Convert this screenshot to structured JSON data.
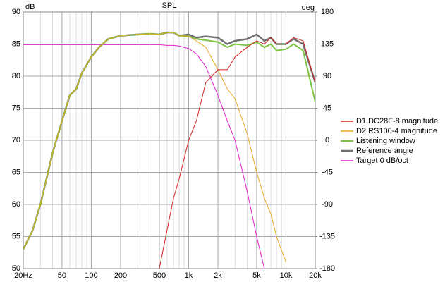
{
  "chart_data": {
    "type": "line",
    "title": "SPL",
    "y_label": "dB",
    "y2_label": "deg",
    "log_x": true,
    "grid": true,
    "minor_grid": true,
    "xlim": [
      20,
      20000
    ],
    "xticks": [
      {
        "value": 20,
        "label": "20Hz"
      },
      50,
      100,
      200,
      500,
      {
        "value": 1000,
        "label": "1k"
      },
      {
        "value": 2000,
        "label": "2k"
      },
      {
        "value": 5000,
        "label": "5k"
      },
      {
        "value": 10000,
        "label": "10k"
      },
      {
        "value": 20000,
        "label": "20k"
      }
    ],
    "ylim": [
      50,
      90
    ],
    "yticks": [
      50,
      55,
      60,
      65,
      70,
      75,
      80,
      85,
      90
    ],
    "y2lim": [
      -180,
      180
    ],
    "y2ticks": [
      -180,
      -135,
      -90,
      -45,
      0,
      45,
      90,
      135,
      180
    ],
    "x": [
      20,
      25,
      30,
      40,
      50,
      60,
      70,
      80,
      100,
      120,
      150,
      200,
      300,
      400,
      500,
      600,
      700,
      800,
      1000,
      1200,
      1500,
      2000,
      2500,
      3000,
      4000,
      5000,
      6000,
      7000,
      8000,
      10000,
      12000,
      15000,
      20000
    ],
    "series": [
      {
        "name": "D1 DC28F-8 magnitude",
        "color": "#d42424",
        "values": [
          null,
          null,
          null,
          null,
          null,
          null,
          null,
          null,
          null,
          null,
          null,
          null,
          null,
          null,
          50,
          56,
          61,
          64,
          70,
          73,
          79,
          81,
          81,
          83,
          84.5,
          85.5,
          85,
          86,
          85,
          85,
          86,
          85.5,
          79
        ]
      },
      {
        "name": "D2 RS100-4 magnitude",
        "color": "#e8a820",
        "values": [
          53,
          56,
          60,
          68,
          73,
          77,
          78,
          80.5,
          83,
          84.5,
          85.8,
          86.3,
          86.5,
          86.6,
          86.5,
          86.8,
          86.8,
          86.3,
          86.2,
          85.5,
          84.5,
          81,
          78,
          76.5,
          71,
          65,
          61,
          58.5,
          55,
          51,
          null,
          null,
          null
        ]
      },
      {
        "name": "Listening window",
        "color": "#7cc242",
        "values": [
          53,
          56,
          60,
          68,
          73,
          77,
          78,
          80.5,
          83,
          84.5,
          85.8,
          86.3,
          86.5,
          86.6,
          86.5,
          86.8,
          86.8,
          86.3,
          86.2,
          85.8,
          85.6,
          85.3,
          84.5,
          85,
          84.8,
          85.3,
          84.5,
          85,
          84,
          84.2,
          85,
          84,
          76
        ]
      },
      {
        "name": "Reference angle",
        "color": "#707070",
        "values": [
          53,
          56,
          60,
          68,
          73,
          77,
          78,
          80.5,
          83,
          84.5,
          85.8,
          86.3,
          86.5,
          86.6,
          86.5,
          86.8,
          86.8,
          86.3,
          86.5,
          86,
          86.2,
          86,
          85,
          85.5,
          85.8,
          86.5,
          85.5,
          86,
          85,
          85,
          85.8,
          85,
          79
        ]
      },
      {
        "name": "Target 0 dB/oct",
        "color": "#e020d0",
        "values": [
          84.9,
          84.9,
          84.9,
          84.9,
          84.9,
          84.9,
          84.9,
          84.9,
          84.9,
          84.9,
          84.9,
          84.9,
          84.9,
          84.9,
          84.9,
          84.8,
          84.8,
          84.7,
          84.3,
          83.5,
          81.5,
          77,
          73,
          70,
          62,
          55,
          50,
          null,
          null,
          null,
          null,
          null,
          null
        ]
      }
    ]
  }
}
